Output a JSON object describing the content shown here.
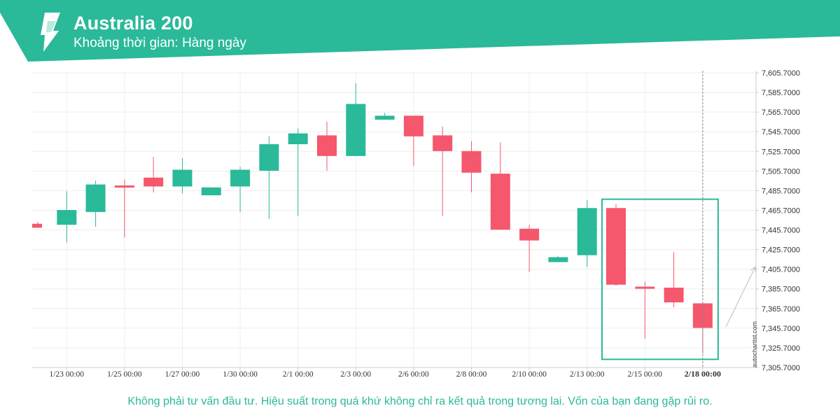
{
  "header": {
    "title": "Australia 200",
    "subtitle": "Khoảng thời gian: Hàng ngày"
  },
  "colors": {
    "brand": "#2ab999",
    "up": "#2ab999",
    "down": "#f5576c",
    "grid": "#eeeeee",
    "axis": "#cccccc",
    "arrow": "#bbbbbb"
  },
  "watermark": "autochartist.com",
  "disclaimer": "Không phải tư vấn đầu tư. Hiệu suất trong quá khứ không chỉ ra kết quả trong tương lai. Vốn của bạn đang gặp rủi ro.",
  "chart_data": {
    "type": "candlestick",
    "title": "Australia 200",
    "subtitle": "Khoảng thời gian: Hàng ngày",
    "ylim": [
      7305.7,
      7605.7
    ],
    "y_ticks": [
      "7,305.7000",
      "7,325.7000",
      "7,345.7000",
      "7,365.7000",
      "7,385.7000",
      "7,405.7000",
      "7,425.7000",
      "7,445.7000",
      "7,465.7000",
      "7,485.7000",
      "7,505.7000",
      "7,525.7000",
      "7,545.7000",
      "7,565.7000",
      "7,585.7000",
      "7,605.7000"
    ],
    "x_ticks": [
      "1/23 00:00",
      "1/25 00:00",
      "1/27 00:00",
      "1/30 00:00",
      "2/1 00:00",
      "2/3 00:00",
      "2/6 00:00",
      "2/8 00:00",
      "2/10 00:00",
      "2/13 00:00",
      "2/15 00:00",
      "2/18 00:00"
    ],
    "grid": true,
    "candles": [
      {
        "open": 7452,
        "high": 7454,
        "low": 7448,
        "close": 7448
      },
      {
        "open": 7451,
        "high": 7485,
        "low": 7433,
        "close": 7466
      },
      {
        "open": 7464,
        "high": 7496,
        "low": 7449,
        "close": 7492
      },
      {
        "open": 7491,
        "high": 7497,
        "low": 7438,
        "close": 7489
      },
      {
        "open": 7499,
        "high": 7520,
        "low": 7484,
        "close": 7490
      },
      {
        "open": 7490,
        "high": 7519,
        "low": 7483,
        "close": 7507
      },
      {
        "open": 7481,
        "high": 7489,
        "low": 7481,
        "close": 7489
      },
      {
        "open": 7490,
        "high": 7510,
        "low": 7464,
        "close": 7507
      },
      {
        "open": 7506,
        "high": 7541,
        "low": 7457,
        "close": 7533
      },
      {
        "open": 7533,
        "high": 7549,
        "low": 7460,
        "close": 7544
      },
      {
        "open": 7542,
        "high": 7556,
        "low": 7506,
        "close": 7521
      },
      {
        "open": 7521,
        "high": 7595,
        "low": 7521,
        "close": 7574
      },
      {
        "open": 7558,
        "high": 7565,
        "low": 7558,
        "close": 7562
      },
      {
        "open": 7562,
        "high": 7562,
        "low": 7511,
        "close": 7541
      },
      {
        "open": 7542,
        "high": 7551,
        "low": 7460,
        "close": 7526
      },
      {
        "open": 7526,
        "high": 7536,
        "low": 7484,
        "close": 7504
      },
      {
        "open": 7503,
        "high": 7535,
        "low": 7446,
        "close": 7446
      },
      {
        "open": 7447,
        "high": 7451,
        "low": 7403,
        "close": 7435
      },
      {
        "open": 7413,
        "high": 7419,
        "low": 7413,
        "close": 7418
      },
      {
        "open": 7420,
        "high": 7476,
        "low": 7408,
        "close": 7468
      },
      {
        "open": 7468,
        "high": 7472,
        "low": 7389,
        "close": 7390
      },
      {
        "open": 7388,
        "high": 7393,
        "low": 7335,
        "close": 7387
      },
      {
        "open": 7387,
        "high": 7423,
        "low": 7367,
        "close": 7372
      },
      {
        "open": 7371,
        "high": 7371,
        "low": 7320,
        "close": 7346
      }
    ],
    "annotations": [
      {
        "type": "highlight-box",
        "from_candle": 20,
        "to_candle": 23,
        "y_range": [
          7314,
          7477
        ]
      },
      {
        "type": "forecast-arrow",
        "from_value": 7347,
        "to_value": 7408
      }
    ]
  }
}
